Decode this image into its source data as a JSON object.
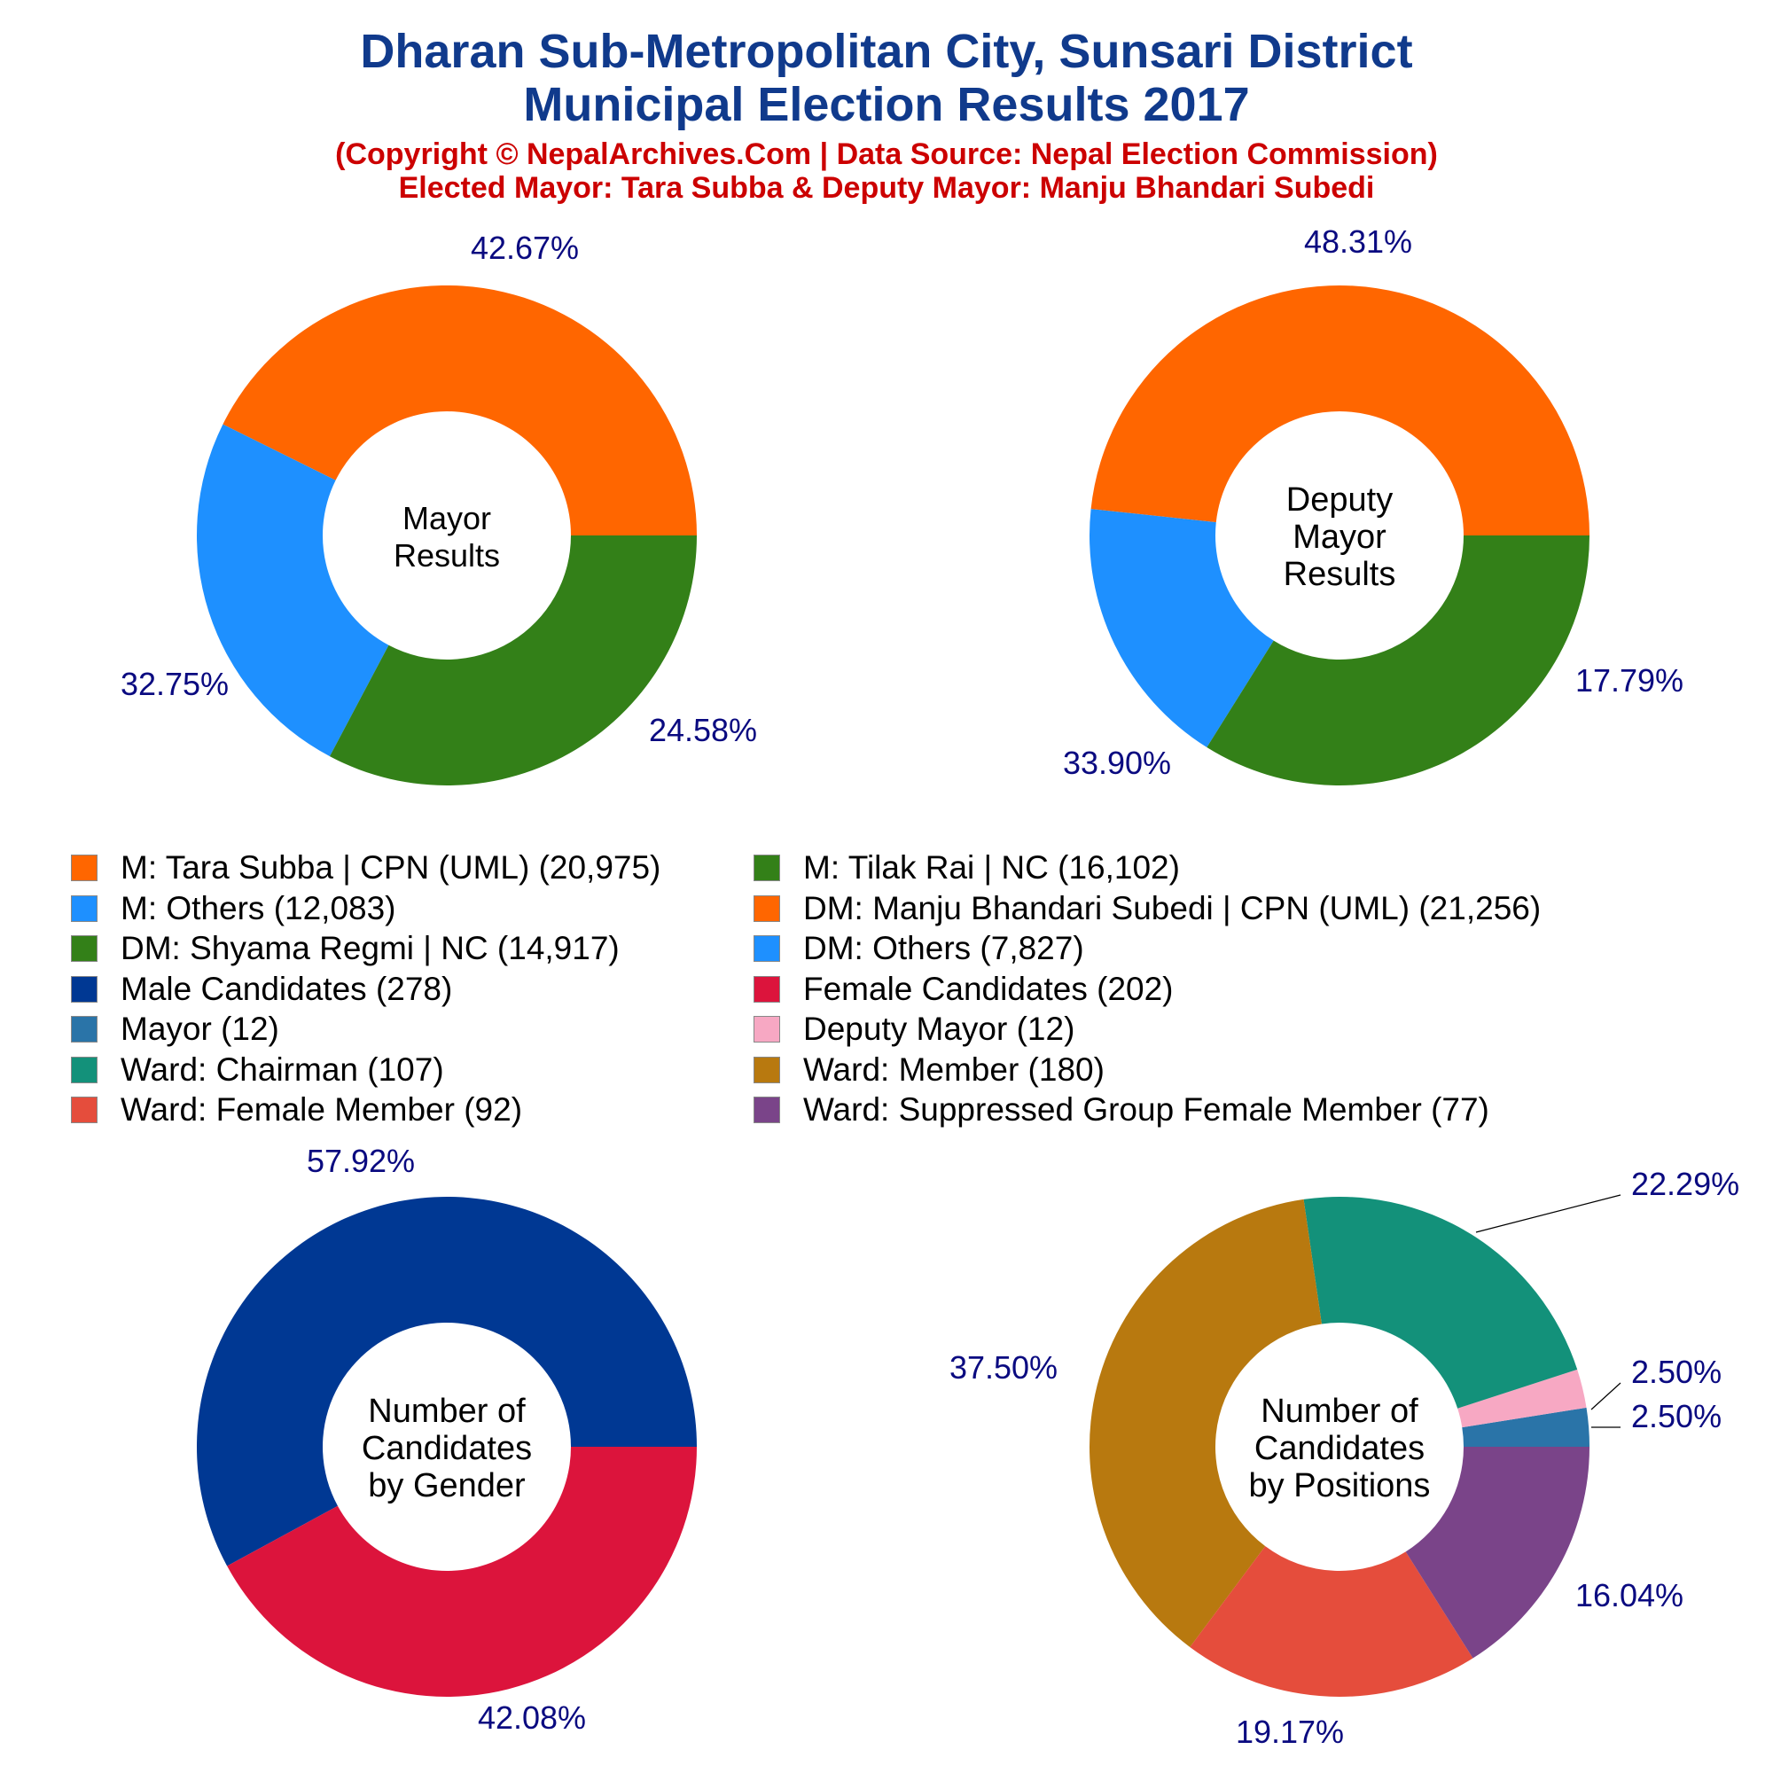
{
  "header": {
    "title_line1": "Dharan Sub-Metropolitan City, Sunsari District",
    "title_line2": "Municipal Election Results 2017",
    "subtitle_line1": "(Copyright © NepalArchives.Com | Data Source: Nepal Election Commission)",
    "subtitle_line2": "Elected Mayor: Tara Subba & Deputy Mayor: Manju Bhandari Subedi"
  },
  "colors": {
    "title": "#103a8c",
    "subtitle": "#cc0000",
    "label": "#0a0a80"
  },
  "chart_data": [
    {
      "type": "pie",
      "donut": true,
      "title": "Mayor\nResults",
      "slices": [
        {
          "label": "M: Tara Subba | CPN (UML)",
          "value": 20975,
          "percent": "42.67%",
          "color": "#ff6600"
        },
        {
          "label": "M: Others",
          "value": 12083,
          "percent": "24.58%",
          "color": "#1e90ff"
        },
        {
          "label": "M: Tilak Rai | NC",
          "value": 16102,
          "percent": "32.75%",
          "color": "#338018"
        }
      ]
    },
    {
      "type": "pie",
      "donut": true,
      "title": "Deputy\nMayor\nResults",
      "slices": [
        {
          "label": "DM: Manju Bhandari Subedi | CPN (UML)",
          "value": 21256,
          "percent": "48.31%",
          "color": "#ff6600"
        },
        {
          "label": "DM: Others",
          "value": 7827,
          "percent": "17.79%",
          "color": "#1e90ff"
        },
        {
          "label": "DM: Shyama Regmi | NC",
          "value": 14917,
          "percent": "33.90%",
          "color": "#338018"
        }
      ]
    },
    {
      "type": "pie",
      "donut": true,
      "title": "Number of\nCandidates\nby Gender",
      "slices": [
        {
          "label": "Male Candidates",
          "value": 278,
          "percent": "57.92%",
          "color": "#003893"
        },
        {
          "label": "Female Candidates",
          "value": 202,
          "percent": "42.08%",
          "color": "#dc143c"
        }
      ]
    },
    {
      "type": "pie",
      "donut": true,
      "title": "Number of\nCandidates\nby Positions",
      "slices": [
        {
          "label": "Mayor",
          "value": 12,
          "percent": "2.50%",
          "color": "#2a74a8"
        },
        {
          "label": "Deputy Mayor",
          "value": 12,
          "percent": "2.50%",
          "color": "#f7a8c3"
        },
        {
          "label": "Ward: Chairman",
          "value": 107,
          "percent": "22.29%",
          "color": "#13917a"
        },
        {
          "label": "Ward: Member",
          "value": 180,
          "percent": "37.50%",
          "color": "#b8790f"
        },
        {
          "label": "Ward: Female Member",
          "value": 92,
          "percent": "19.17%",
          "color": "#e54d3c"
        },
        {
          "label": "Ward: Suppressed Group Female Member",
          "value": 77,
          "percent": "16.04%",
          "color": "#7a4489"
        }
      ]
    }
  ],
  "legend": [
    {
      "text": "M: Tara Subba | CPN (UML) (20,975)",
      "color": "#ff6600"
    },
    {
      "text": "M: Tilak Rai | NC (16,102)",
      "color": "#338018"
    },
    {
      "text": "M: Others (12,083)",
      "color": "#1e90ff"
    },
    {
      "text": "DM: Manju Bhandari Subedi | CPN (UML) (21,256)",
      "color": "#ff6600"
    },
    {
      "text": "DM: Shyama Regmi | NC (14,917)",
      "color": "#338018"
    },
    {
      "text": "DM: Others (7,827)",
      "color": "#1e90ff"
    },
    {
      "text": "Male Candidates (278)",
      "color": "#003893"
    },
    {
      "text": "Female Candidates (202)",
      "color": "#dc143c"
    },
    {
      "text": "Mayor (12)",
      "color": "#2a74a8"
    },
    {
      "text": "Deputy Mayor (12)",
      "color": "#f7a8c3"
    },
    {
      "text": "Ward: Chairman (107)",
      "color": "#13917a"
    },
    {
      "text": "Ward: Member (180)",
      "color": "#b8790f"
    },
    {
      "text": "Ward: Female Member (92)",
      "color": "#e54d3c"
    },
    {
      "text": "Ward: Suppressed Group Female Member (77)",
      "color": "#7a4489"
    }
  ]
}
